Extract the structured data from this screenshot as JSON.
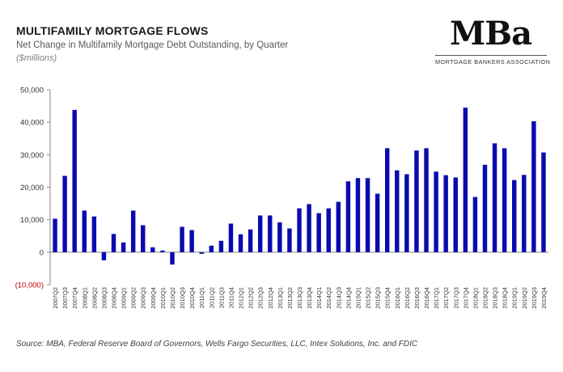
{
  "header": {
    "title": "MULTIFAMILY MORTGAGE FLOWS",
    "subtitle": "Net Change in Multifamily Mortgage Debt Outstanding, by Quarter",
    "units": "($millions)"
  },
  "logo": {
    "mark": "MBa",
    "name": "MORTGAGE BANKERS ASSOCIATION"
  },
  "footer": {
    "source": "Source:  MBA, Federal Reserve Board of Governors, Wells Fargo Securities, LLC, Intex Solutions, Inc. and FDIC"
  },
  "chart_data": {
    "type": "bar",
    "title": "MULTIFAMILY MORTGAGE FLOWS",
    "subtitle": "Net Change in Multifamily Mortgage Debt Outstanding, by Quarter",
    "ylabel": "($millions)",
    "xlabel": "",
    "ylim": [
      -10000,
      50000
    ],
    "yticks": [
      -10000,
      0,
      10000,
      20000,
      30000,
      40000,
      50000
    ],
    "ytick_labels": [
      "(10,000)",
      "0",
      "10,000",
      "20,000",
      "30,000",
      "40,000",
      "50,000"
    ],
    "grid": false,
    "bar_color": "#0a0ab0",
    "negative_label_color": "#c00000",
    "categories": [
      "2007Q2",
      "2007Q3",
      "2007Q4",
      "2008Q1",
      "2008Q2",
      "2008Q3",
      "2008Q4",
      "2009Q1",
      "2009Q2",
      "2009Q3",
      "2009Q4",
      "2010Q1",
      "2010Q2",
      "2010Q3",
      "2010Q4",
      "2011Q1",
      "2011Q2",
      "2011Q3",
      "2011Q4",
      "2012Q1",
      "2012Q2",
      "2012Q3",
      "2012Q4",
      "2013Q1",
      "2013Q2",
      "2013Q3",
      "2013Q4",
      "2014Q1",
      "2014Q2",
      "2014Q3",
      "2014Q4",
      "2015Q1",
      "2015Q2",
      "2015Q3",
      "2015Q4",
      "2016Q1",
      "2016Q2",
      "2016Q3",
      "2016Q4",
      "2017Q1",
      "2017Q2",
      "2017Q3",
      "2017Q4",
      "2018Q1",
      "2018Q2",
      "2018Q3",
      "2018Q4",
      "2019Q1",
      "2019Q2",
      "2019Q3",
      "2019Q4"
    ],
    "values": [
      10300,
      23500,
      43800,
      12800,
      11000,
      -2500,
      5600,
      3000,
      12800,
      8300,
      1500,
      500,
      -3800,
      7800,
      6800,
      -500,
      2000,
      3500,
      8800,
      5500,
      7000,
      11300,
      11300,
      9200,
      7300,
      13500,
      14800,
      12000,
      13500,
      15500,
      21800,
      22800,
      22800,
      18000,
      32000,
      25200,
      24000,
      31300,
      32000,
      24800,
      23700,
      23000,
      44500,
      17000,
      26900,
      33500,
      32000,
      22200,
      23800,
      40300,
      30700
    ]
  }
}
